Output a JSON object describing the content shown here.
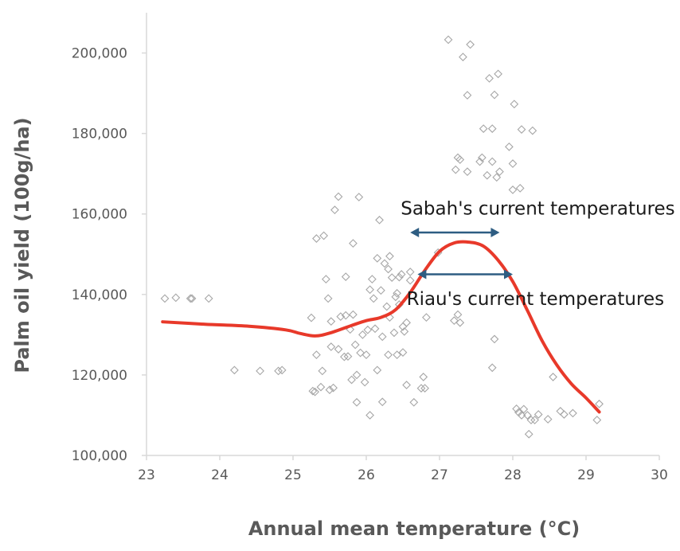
{
  "chart_data": {
    "type": "scatter",
    "title": "",
    "xlabel": "Annual mean temperature (°C)",
    "ylabel": "Palm oil yield (100g/ha)",
    "xlim": [
      23,
      30
    ],
    "ylim": [
      100000,
      210000
    ],
    "x_ticks": [
      "23",
      "24",
      "25",
      "26",
      "27",
      "28",
      "29",
      "30"
    ],
    "y_ticks": [
      "100,000",
      "120,000",
      "140,000",
      "160,000",
      "180,000",
      "200,000"
    ],
    "grid": false,
    "colors": {
      "points": "#a6a6a6",
      "curve": "#e8392a",
      "arrows": "#2e5d82",
      "axis": "#d9d9d9",
      "text": "#595959"
    },
    "series": [
      {
        "kind": "scatter",
        "points": [
          [
            23.25,
            139000
          ],
          [
            23.4,
            139200
          ],
          [
            23.6,
            139000
          ],
          [
            23.62,
            139000
          ],
          [
            23.85,
            139000
          ],
          [
            24.2,
            121200
          ],
          [
            24.55,
            121000
          ],
          [
            24.8,
            121000
          ],
          [
            24.85,
            121200
          ],
          [
            25.25,
            134200
          ],
          [
            25.27,
            116000
          ],
          [
            25.3,
            115800
          ],
          [
            25.32,
            125000
          ],
          [
            25.32,
            153900
          ],
          [
            25.38,
            117000
          ],
          [
            25.4,
            121000
          ],
          [
            25.42,
            154600
          ],
          [
            25.45,
            143800
          ],
          [
            25.48,
            139000
          ],
          [
            25.5,
            116300
          ],
          [
            25.52,
            127000
          ],
          [
            25.52,
            133300
          ],
          [
            25.55,
            116800
          ],
          [
            25.57,
            161000
          ],
          [
            25.62,
            164300
          ],
          [
            25.62,
            126400
          ],
          [
            25.65,
            134500
          ],
          [
            25.7,
            124500
          ],
          [
            25.72,
            134800
          ],
          [
            25.72,
            144400
          ],
          [
            25.75,
            124600
          ],
          [
            25.78,
            131300
          ],
          [
            25.8,
            118800
          ],
          [
            25.82,
            152700
          ],
          [
            25.82,
            135000
          ],
          [
            25.85,
            127500
          ],
          [
            25.87,
            120000
          ],
          [
            25.87,
            113200
          ],
          [
            25.9,
            164200
          ],
          [
            25.92,
            125500
          ],
          [
            25.95,
            130000
          ],
          [
            25.98,
            118200
          ],
          [
            26.0,
            125000
          ],
          [
            26.02,
            131200
          ],
          [
            26.05,
            110000
          ],
          [
            26.05,
            141200
          ],
          [
            26.08,
            143800
          ],
          [
            26.1,
            139000
          ],
          [
            26.12,
            131500
          ],
          [
            26.15,
            149000
          ],
          [
            26.15,
            121200
          ],
          [
            26.18,
            158500
          ],
          [
            26.2,
            141000
          ],
          [
            26.22,
            113300
          ],
          [
            26.22,
            129500
          ],
          [
            26.25,
            147700
          ],
          [
            26.28,
            137000
          ],
          [
            26.3,
            125000
          ],
          [
            26.3,
            146300
          ],
          [
            26.32,
            134300
          ],
          [
            26.32,
            149500
          ],
          [
            26.35,
            144200
          ],
          [
            26.38,
            130500
          ],
          [
            26.4,
            139400
          ],
          [
            26.42,
            140300
          ],
          [
            26.42,
            125000
          ],
          [
            26.45,
            137500
          ],
          [
            26.45,
            144300
          ],
          [
            26.48,
            145000
          ],
          [
            26.5,
            125600
          ],
          [
            26.5,
            132000
          ],
          [
            26.52,
            130800
          ],
          [
            26.55,
            117500
          ],
          [
            26.55,
            133000
          ],
          [
            26.6,
            143500
          ],
          [
            26.6,
            145600
          ],
          [
            26.65,
            113200
          ],
          [
            26.75,
            116700
          ],
          [
            26.78,
            119500
          ],
          [
            26.8,
            116700
          ],
          [
            26.82,
            134300
          ],
          [
            26.98,
            150400
          ],
          [
            27.12,
            203300
          ],
          [
            27.2,
            133500
          ],
          [
            27.22,
            171000
          ],
          [
            27.25,
            174000
          ],
          [
            27.25,
            135000
          ],
          [
            27.28,
            173500
          ],
          [
            27.28,
            133000
          ],
          [
            27.32,
            199000
          ],
          [
            27.38,
            189500
          ],
          [
            27.38,
            170500
          ],
          [
            27.42,
            202100
          ],
          [
            27.55,
            173000
          ],
          [
            27.58,
            174000
          ],
          [
            27.6,
            181200
          ],
          [
            27.65,
            169600
          ],
          [
            27.68,
            193700
          ],
          [
            27.72,
            181200
          ],
          [
            27.72,
            173000
          ],
          [
            27.72,
            121800
          ],
          [
            27.75,
            189600
          ],
          [
            27.75,
            128900
          ],
          [
            27.78,
            169100
          ],
          [
            27.8,
            194800
          ],
          [
            27.82,
            170500
          ],
          [
            27.95,
            176700
          ],
          [
            28.0,
            172500
          ],
          [
            28.0,
            166000
          ],
          [
            28.02,
            187300
          ],
          [
            28.05,
            111600
          ],
          [
            28.08,
            110700
          ],
          [
            28.1,
            166400
          ],
          [
            28.12,
            181000
          ],
          [
            28.12,
            110000
          ],
          [
            28.15,
            111500
          ],
          [
            28.2,
            110000
          ],
          [
            28.22,
            105300
          ],
          [
            28.25,
            108800
          ],
          [
            28.27,
            180700
          ],
          [
            28.3,
            108800
          ],
          [
            28.35,
            110200
          ],
          [
            28.48,
            109000
          ],
          [
            28.55,
            119500
          ],
          [
            28.65,
            111000
          ],
          [
            28.7,
            110200
          ],
          [
            28.82,
            110500
          ],
          [
            29.15,
            108800
          ],
          [
            29.18,
            112800
          ]
        ]
      },
      {
        "kind": "line",
        "points": [
          [
            23.22,
            133200
          ],
          [
            23.8,
            132600
          ],
          [
            24.4,
            132100
          ],
          [
            24.9,
            131200
          ],
          [
            25.1,
            130300
          ],
          [
            25.3,
            129700
          ],
          [
            25.5,
            130400
          ],
          [
            25.8,
            132300
          ],
          [
            26.0,
            133500
          ],
          [
            26.2,
            134300
          ],
          [
            26.4,
            136200
          ],
          [
            26.6,
            140500
          ],
          [
            26.8,
            146000
          ],
          [
            27.0,
            150700
          ],
          [
            27.2,
            152800
          ],
          [
            27.4,
            153000
          ],
          [
            27.6,
            152000
          ],
          [
            27.8,
            148500
          ],
          [
            28.0,
            143200
          ],
          [
            28.2,
            136000
          ],
          [
            28.4,
            128500
          ],
          [
            28.6,
            122500
          ],
          [
            28.8,
            117800
          ],
          [
            29.0,
            114300
          ],
          [
            29.18,
            110800
          ]
        ]
      }
    ],
    "annotations": [
      {
        "text": "Sabah's current temperatures",
        "x_from": 26.6,
        "x_to": 27.82,
        "y": 155400,
        "text_x": 26.47,
        "text_y": 161400
      },
      {
        "text": "Riau's current temperatures",
        "x_from": 26.7,
        "x_to": 28.0,
        "y": 145000,
        "text_x": 26.55,
        "text_y": 139000
      }
    ]
  }
}
